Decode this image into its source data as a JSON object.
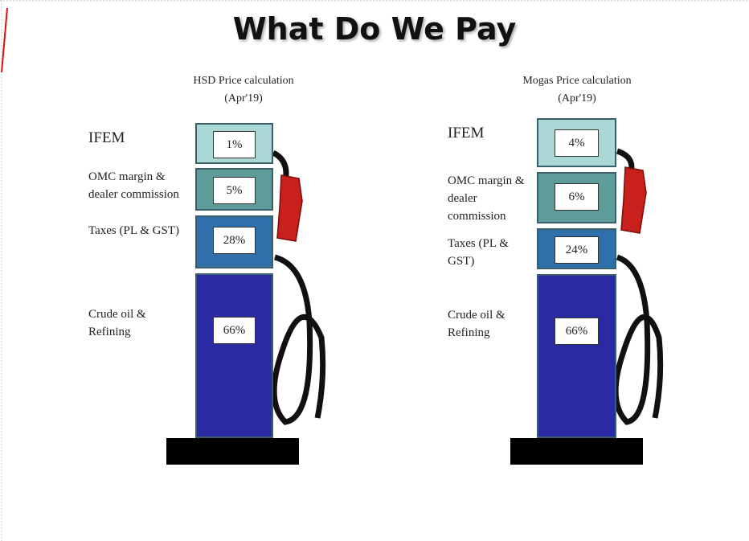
{
  "title": "What Do We Pay",
  "pumps": [
    {
      "heading": "HSD Price calculation (Apr'19)",
      "segments": [
        {
          "label": "IFEM",
          "value": "1%"
        },
        {
          "label": "OMC margin & dealer commission",
          "value": "5%"
        },
        {
          "label": "Taxes (PL & GST)",
          "value": "28%"
        },
        {
          "label": "Crude oil & Refining",
          "value": "66%"
        }
      ]
    },
    {
      "heading": "Mogas Price calculation (Apr'19)",
      "segments": [
        {
          "label": "IFEM",
          "value": "4%"
        },
        {
          "label": "OMC margin & dealer commission",
          "value": "6%"
        },
        {
          "label": "Taxes (PL & GST)",
          "value": "24%"
        },
        {
          "label": "Crude oil & Refining",
          "value": "66%"
        }
      ]
    }
  ]
}
